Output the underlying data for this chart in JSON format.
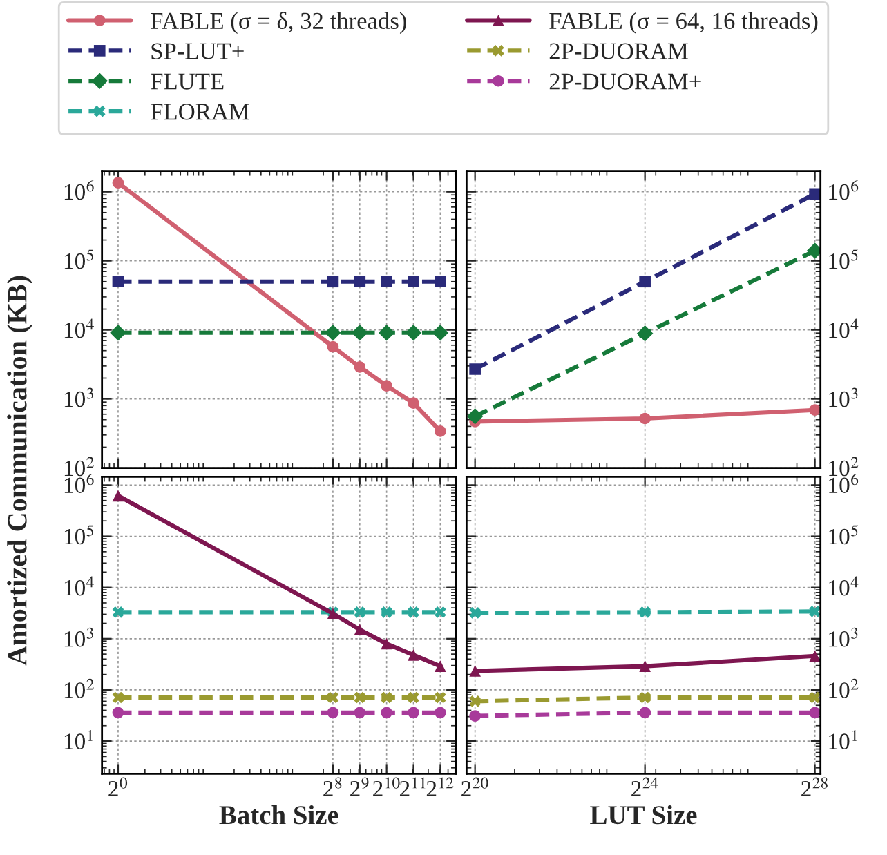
{
  "chart_data": [
    {
      "type": "line",
      "ylabel": "Amortized Communication (KB)",
      "legend": "top",
      "log": "xy",
      "grid": true,
      "tick_labels": "y",
      "xlim": [
        0.66,
        6130
      ],
      "ylim": [
        100,
        2000000
      ],
      "yticks": [
        {
          "value": 100,
          "label": "10$^{2}$"
        },
        {
          "value": 1000,
          "label": "10$^{3}$"
        },
        {
          "value": 10000,
          "label": "10$^{4}$"
        },
        {
          "value": 100000,
          "label": "10$^{5}$"
        },
        {
          "value": 1000000,
          "label": "10$^{6}$"
        }
      ],
      "x": [
        1,
        256,
        512,
        1024,
        2048,
        4096
      ],
      "series": [
        {
          "name": "FABLE (σ = δ, 32 threads)",
          "color": "#d06070",
          "marker": "circle",
          "line_style": "solid",
          "values": [
            1350000,
            5700,
            2900,
            1550,
            870,
            340
          ]
        },
        {
          "name": "SP-LUT+",
          "color": "#2a2a7a",
          "marker": "square",
          "line_style": "dashed",
          "values": [
            50000,
            50000,
            50000,
            50000,
            50000,
            50000
          ]
        },
        {
          "name": "FLUTE",
          "color": "#167a3a",
          "marker": "diamond",
          "line_style": "dashed",
          "values": [
            9100,
            9100,
            9100,
            9100,
            9100,
            9100
          ]
        }
      ]
    },
    {
      "type": "line",
      "legend": "top",
      "log": "xy",
      "grid": true,
      "tick_labels": "y",
      "xlim": [
        913000,
        294000000
      ],
      "ylim": [
        100,
        2000000
      ],
      "yticks": [
        {
          "value": 100,
          "label": "10$^{2}$"
        },
        {
          "value": 1000,
          "label": "10$^{3}$"
        },
        {
          "value": 10000,
          "label": "10$^{4}$"
        },
        {
          "value": 100000,
          "label": "10$^{5}$"
        },
        {
          "value": 1000000,
          "label": "10$^{6}$"
        }
      ],
      "x": [
        1048576,
        16777216,
        268435456
      ],
      "series": [
        {
          "name": "FABLE (σ = δ, 32 threads)",
          "color": "#d06070",
          "marker": "circle",
          "line_style": "solid",
          "values": [
            470,
            520,
            690
          ]
        },
        {
          "name": "SP-LUT+",
          "color": "#2a2a7a",
          "marker": "square",
          "line_style": "dashed",
          "values": [
            2700,
            50000,
            930000
          ]
        },
        {
          "name": "FLUTE",
          "color": "#167a3a",
          "marker": "diamond",
          "line_style": "dashed",
          "values": [
            560,
            8900,
            140000
          ]
        }
      ]
    },
    {
      "type": "line",
      "xlabel": "Batch Size",
      "legend": "top",
      "log": "xy",
      "grid": true,
      "xlim": [
        0.66,
        6130
      ],
      "xticks": [
        {
          "value": 1,
          "label": "2$^{0}$"
        },
        {
          "value": 256,
          "label": "2$^{8}$"
        },
        {
          "value": 512,
          "label": "2$^{9}$"
        },
        {
          "value": 1024,
          "label": "2$^{10}$"
        },
        {
          "value": 2048,
          "label": "2$^{11}$"
        },
        {
          "value": 4096,
          "label": "2$^{12}$"
        }
      ],
      "ylim": [
        2.3,
        1450000
      ],
      "yticks": [
        {
          "value": 10,
          "label": "10$^{1}$"
        },
        {
          "value": 100,
          "label": "10$^{2}$"
        },
        {
          "value": 1000,
          "label": "10$^{3}$"
        },
        {
          "value": 10000,
          "label": "10$^{4}$"
        },
        {
          "value": 100000,
          "label": "10$^{5}$"
        },
        {
          "value": 1000000,
          "label": "10$^{6}$"
        }
      ],
      "x": [
        1,
        256,
        512,
        1024,
        2048,
        4096
      ],
      "series": [
        {
          "name": "FLORAM",
          "color": "#2aa89a",
          "marker": "cross",
          "line_style": "dashed",
          "values": [
            3300,
            3300,
            3300,
            3300,
            3300,
            3300
          ]
        },
        {
          "name": "FABLE (σ = 64, 16 threads)",
          "color": "#7e1650",
          "marker": "triangle",
          "line_style": "solid",
          "values": [
            620000,
            3100,
            1500,
            800,
            480,
            290
          ]
        },
        {
          "name": "2P-DUORAM",
          "color": "#9a9a30",
          "marker": "cross",
          "line_style": "dashed",
          "values": [
            71,
            71,
            71,
            71,
            71,
            71
          ]
        },
        {
          "name": "2P-DUORAM+",
          "color": "#a83a9a",
          "marker": "circle",
          "line_style": "dashed",
          "values": [
            36,
            36,
            36,
            36,
            36,
            36
          ]
        }
      ]
    },
    {
      "type": "line",
      "xlabel": "LUT Size",
      "legend": "top",
      "log": "xy",
      "grid": true,
      "xlim": [
        913000,
        294000000
      ],
      "xticks": [
        {
          "value": 1048576,
          "label": "2$^{20}$"
        },
        {
          "value": 16777216,
          "label": "2$^{24}$"
        },
        {
          "value": 268435456,
          "label": "2$^{28}$"
        }
      ],
      "ylim": [
        2.3,
        1450000
      ],
      "yticks": [
        {
          "value": 10,
          "label": "10$^{1}$"
        },
        {
          "value": 100,
          "label": "10$^{2}$"
        },
        {
          "value": 1000,
          "label": "10$^{3}$"
        },
        {
          "value": 10000,
          "label": "10$^{4}$"
        },
        {
          "value": 100000,
          "label": "10$^{5}$"
        },
        {
          "value": 1000000,
          "label": "10$^{6}$"
        }
      ],
      "x": [
        1048576,
        16777216,
        268435456
      ],
      "series": [
        {
          "name": "FLORAM",
          "color": "#2aa89a",
          "marker": "cross",
          "line_style": "dashed",
          "values": [
            3200,
            3300,
            3400
          ]
        },
        {
          "name": "FABLE (σ = 64, 16 threads)",
          "color": "#7e1650",
          "marker": "triangle",
          "line_style": "solid",
          "values": [
            235,
            290,
            460
          ]
        },
        {
          "name": "2P-DUORAM",
          "color": "#9a9a30",
          "marker": "cross",
          "line_style": "dashed",
          "values": [
            60,
            71,
            71
          ]
        },
        {
          "name": "2P-DUORAM+",
          "color": "#a83a9a",
          "marker": "circle",
          "line_style": "dashed",
          "values": [
            31,
            36,
            36
          ]
        }
      ]
    }
  ]
}
